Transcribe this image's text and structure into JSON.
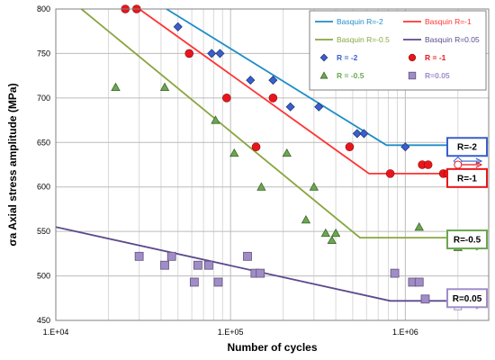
{
  "chart_data": {
    "type": "scatter",
    "xlabel": "Number of cycles",
    "ylabel": "σa Axial stress amplitude (MPa)",
    "x_scale": "log",
    "xlim": [
      10000,
      3000000
    ],
    "ylim": [
      450,
      800
    ],
    "x_ticks": [
      10000,
      100000,
      1000000
    ],
    "x_tick_labels": [
      "1.E+04",
      "1.E+05",
      "1.E+06"
    ],
    "y_ticks": [
      450,
      500,
      550,
      600,
      650,
      700,
      750,
      800
    ],
    "y_tick_labels": [
      "450",
      "500",
      "550",
      "600",
      "650",
      "700",
      "750",
      "800"
    ],
    "grid": true,
    "legend_position": "top-right",
    "lines": [
      {
        "name": "Basquin R=-2",
        "color": "#1f8dc8",
        "points": [
          [
            43000,
            800
          ],
          [
            780000,
            647
          ],
          [
            2000000,
            647
          ]
        ]
      },
      {
        "name": "Basquin R=-1",
        "color": "#ff3333",
        "points": [
          [
            30000,
            800
          ],
          [
            620000,
            615
          ],
          [
            2000000,
            615
          ]
        ]
      },
      {
        "name": "Basquin R=-0.5",
        "color": "#8aa640",
        "points": [
          [
            14000,
            800
          ],
          [
            550000,
            543
          ],
          [
            2000000,
            543
          ]
        ]
      },
      {
        "name": "Basquin R=0.05",
        "color": "#5c4a8c",
        "points": [
          [
            10000,
            555
          ],
          [
            820000,
            472
          ],
          [
            2000000,
            472
          ]
        ]
      }
    ],
    "series": [
      {
        "name": "R = -2",
        "marker": "diamond",
        "color": "#3a5fcd",
        "points": [
          [
            50000,
            780
          ],
          [
            78000,
            750
          ],
          [
            87000,
            750
          ],
          [
            130000,
            720
          ],
          [
            175000,
            720
          ],
          [
            220000,
            690
          ],
          [
            320000,
            690
          ],
          [
            530000,
            660
          ],
          [
            580000,
            660
          ],
          [
            1000000,
            645
          ]
        ]
      },
      {
        "name": "R = -1",
        "marker": "circle",
        "color": "#e8161b",
        "points": [
          [
            25000,
            800
          ],
          [
            29000,
            800
          ],
          [
            58000,
            750
          ],
          [
            95000,
            700
          ],
          [
            140000,
            645
          ],
          [
            175000,
            700
          ],
          [
            480000,
            645
          ],
          [
            820000,
            615
          ],
          [
            1250000,
            625
          ],
          [
            1350000,
            625
          ],
          [
            1650000,
            615
          ],
          [
            1750000,
            615
          ]
        ]
      },
      {
        "name": "R = -0.5",
        "marker": "triangle",
        "color": "#6aa84f",
        "points": [
          [
            22000,
            712
          ],
          [
            42000,
            712
          ],
          [
            82000,
            675
          ],
          [
            105000,
            638
          ],
          [
            150000,
            600
          ],
          [
            210000,
            638
          ],
          [
            270000,
            563
          ],
          [
            300000,
            600
          ],
          [
            350000,
            548
          ],
          [
            380000,
            540
          ],
          [
            400000,
            548
          ],
          [
            1200000,
            555
          ]
        ]
      },
      {
        "name": "R=0.05",
        "marker": "square",
        "color": "#a08cc8",
        "points": [
          [
            30000,
            522
          ],
          [
            42000,
            512
          ],
          [
            46000,
            522
          ],
          [
            62000,
            493
          ],
          [
            65000,
            512
          ],
          [
            75000,
            512
          ],
          [
            85000,
            493
          ],
          [
            125000,
            522
          ],
          [
            138000,
            503
          ],
          [
            148000,
            503
          ],
          [
            870000,
            503
          ],
          [
            1100000,
            493
          ],
          [
            1200000,
            493
          ],
          [
            1300000,
            474
          ]
        ]
      }
    ],
    "runouts": [
      {
        "name": "R=-2",
        "color": "#3a5fcd",
        "points": [
          [
            2000000,
            645
          ],
          [
            2000000,
            629
          ]
        ]
      },
      {
        "name": "R=-1",
        "color": "#e8161b",
        "points": [
          [
            2000000,
            625
          ],
          [
            2000000,
            605
          ],
          [
            2100000,
            605
          ]
        ]
      },
      {
        "name": "R=-0.5",
        "color": "#6aa84f",
        "points": [
          [
            2000000,
            540
          ],
          [
            2000000,
            536
          ],
          [
            2000000,
            532
          ],
          [
            2100000,
            540
          ]
        ]
      },
      {
        "name": "R=0.05",
        "color": "#a08cc8",
        "points": [
          [
            2000000,
            466
          ]
        ]
      }
    ],
    "box_labels": [
      {
        "text": "R=-2",
        "y": 645,
        "color": "#3a5fcd"
      },
      {
        "text": "R=-1",
        "y": 610,
        "color": "#e8161b"
      },
      {
        "text": "R=-0.5",
        "y": 541,
        "color": "#6aa84f"
      },
      {
        "text": "R=0.05",
        "y": 475,
        "color": "#a08cc8"
      }
    ]
  }
}
